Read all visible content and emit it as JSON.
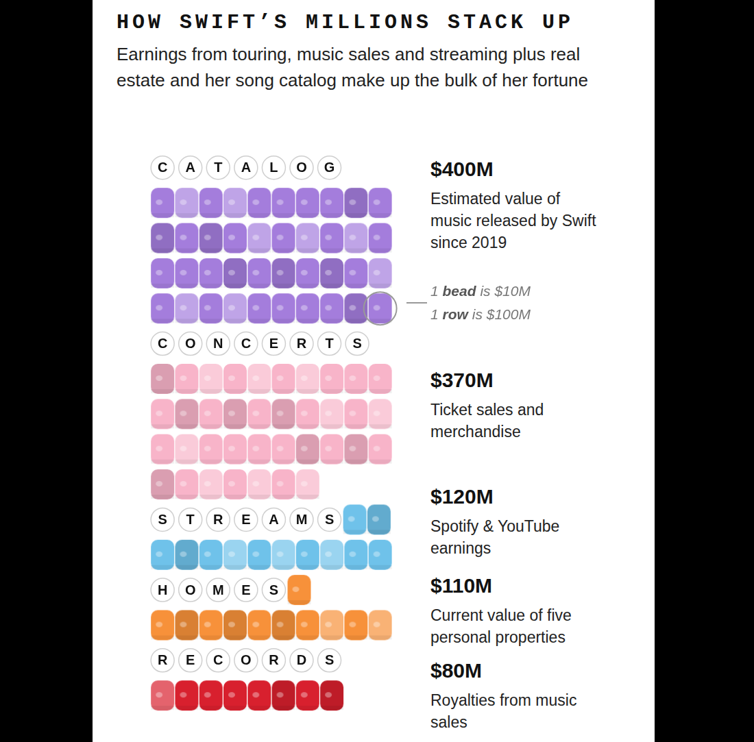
{
  "chart_data": {
    "type": "pictogram",
    "title": "HOW SWIFT’S MILLIONS STACK UP",
    "subtitle": "Earnings from touring, music sales and streaming plus real estate and her song catalog make up the bulk of her fortune",
    "categories": [
      "CATALOG",
      "CONCERTS",
      "STREAMS",
      "HOMES",
      "RECORDS"
    ],
    "values": [
      400,
      370,
      120,
      110,
      80
    ],
    "value_labels": [
      "$400M",
      "$370M",
      "$120M",
      "$110M",
      "$80M"
    ],
    "descriptions": [
      "Estimated value of music released by Swift since 2019",
      "Ticket sales and merchandise",
      "Spotify & YouTube earnings",
      "Current value of five personal properties",
      "Royalties from music sales"
    ],
    "colors": [
      "#a47ddc",
      "#f8b4c9",
      "#6fc2ea",
      "#f7913a",
      "#d8202e"
    ],
    "bead_value": 10,
    "row_value": 100,
    "annotations": [
      "1 bead is $10M",
      "1 row is $100M"
    ],
    "data_labels": true,
    "tick_labels": false,
    "grid": false
  }
}
